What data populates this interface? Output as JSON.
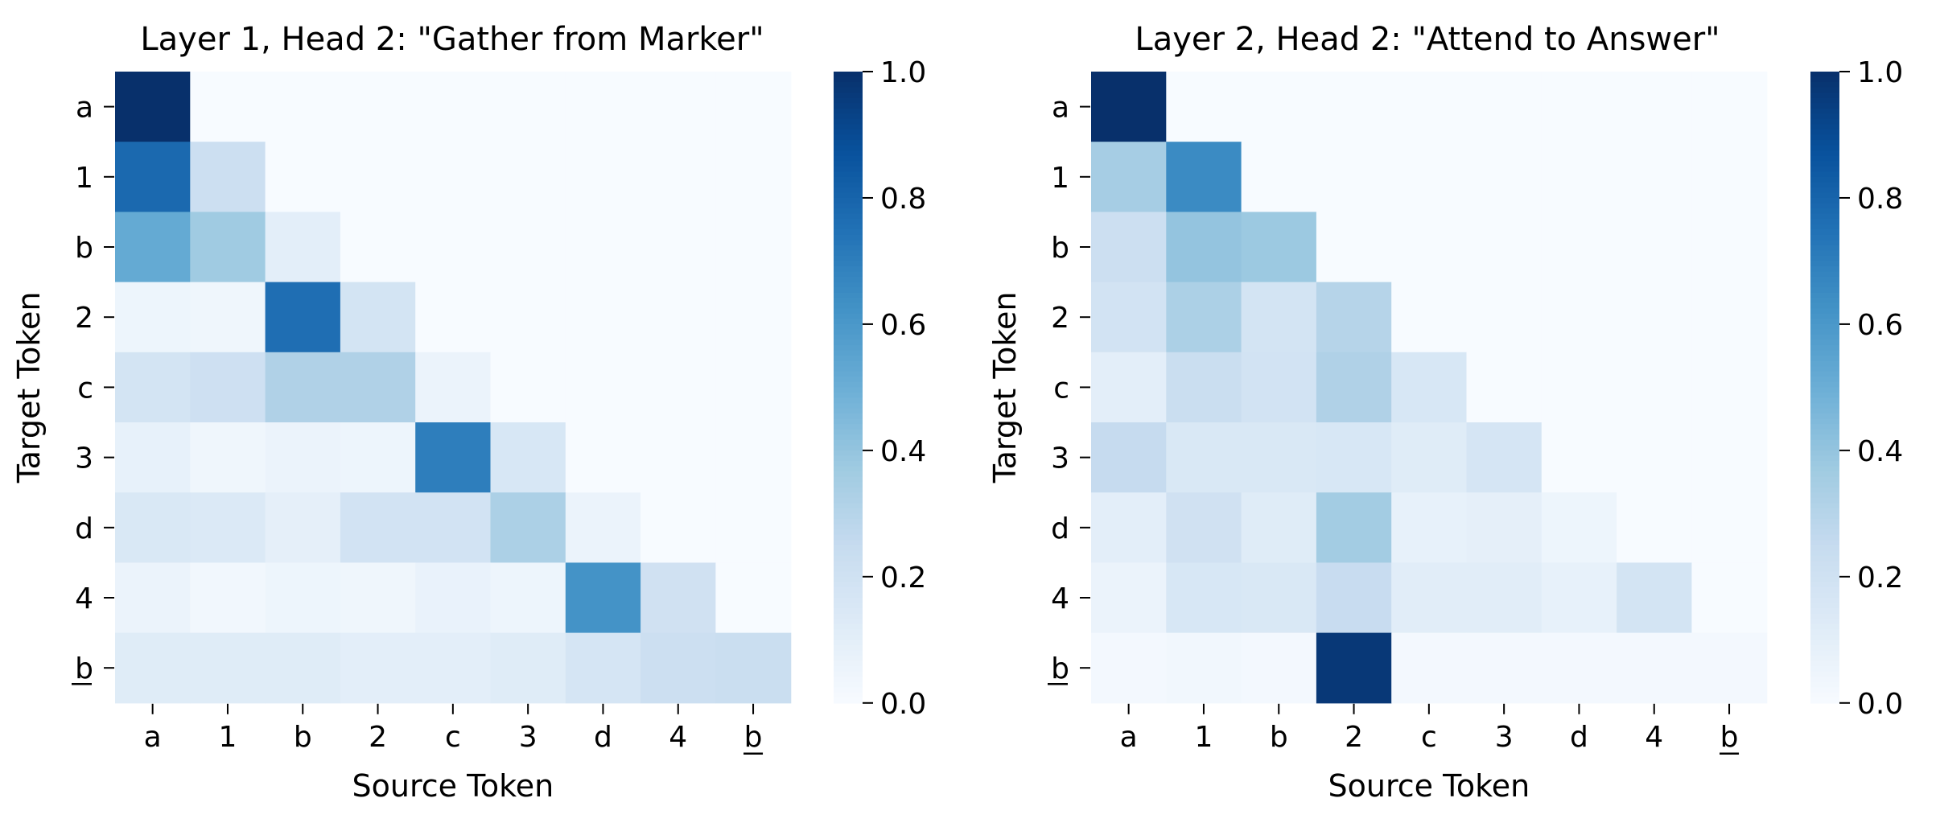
{
  "chart_data": [
    {
      "type": "heatmap",
      "title": "Layer 1, Head 2: \"Gather from Marker\"",
      "xlabel": "Source Token",
      "ylabel": "Target Token",
      "x_categories": [
        "a",
        "1",
        "b",
        "2",
        "c",
        "3",
        "d",
        "4",
        "b"
      ],
      "y_categories": [
        "a",
        "1",
        "b",
        "2",
        "c",
        "3",
        "d",
        "4",
        "b"
      ],
      "underlined_tokens": [
        "b at position 9 (x and y)"
      ],
      "colorbar": {
        "min": 0.0,
        "max": 1.0,
        "ticks": [
          "0.0",
          "0.2",
          "0.4",
          "0.6",
          "0.8",
          "1.0"
        ],
        "colormap": "Blues"
      },
      "values": [
        [
          1.0,
          0.0,
          0.0,
          0.0,
          0.0,
          0.0,
          0.0,
          0.0,
          0.0
        ],
        [
          0.78,
          0.22,
          0.0,
          0.0,
          0.0,
          0.0,
          0.0,
          0.0,
          0.0
        ],
        [
          0.52,
          0.37,
          0.1,
          0.0,
          0.0,
          0.0,
          0.0,
          0.0,
          0.0
        ],
        [
          0.05,
          0.04,
          0.76,
          0.18,
          0.0,
          0.0,
          0.0,
          0.0,
          0.0
        ],
        [
          0.18,
          0.21,
          0.32,
          0.32,
          0.06,
          0.0,
          0.0,
          0.0,
          0.0
        ],
        [
          0.08,
          0.04,
          0.06,
          0.05,
          0.7,
          0.16,
          0.0,
          0.0,
          0.0
        ],
        [
          0.15,
          0.14,
          0.09,
          0.19,
          0.19,
          0.33,
          0.06,
          0.0,
          0.0
        ],
        [
          0.06,
          0.03,
          0.05,
          0.04,
          0.07,
          0.05,
          0.62,
          0.2,
          0.0
        ],
        [
          0.12,
          0.12,
          0.12,
          0.1,
          0.1,
          0.12,
          0.17,
          0.22,
          0.23
        ]
      ]
    },
    {
      "type": "heatmap",
      "title": "Layer 2, Head 2: \"Attend to Answer\"",
      "xlabel": "Source Token",
      "ylabel": "Target Token",
      "x_categories": [
        "a",
        "1",
        "b",
        "2",
        "c",
        "3",
        "d",
        "4",
        "b"
      ],
      "y_categories": [
        "a",
        "1",
        "b",
        "2",
        "c",
        "3",
        "d",
        "4",
        "b"
      ],
      "underlined_tokens": [
        "b at position 9 (x and y)"
      ],
      "colorbar": {
        "min": 0.0,
        "max": 1.0,
        "ticks": [
          "0.0",
          "0.2",
          "0.4",
          "0.6",
          "0.8",
          "1.0"
        ],
        "colormap": "Blues"
      },
      "values": [
        [
          1.0,
          0.0,
          0.0,
          0.0,
          0.0,
          0.0,
          0.0,
          0.0,
          0.0
        ],
        [
          0.35,
          0.65,
          0.0,
          0.0,
          0.0,
          0.0,
          0.0,
          0.0,
          0.0
        ],
        [
          0.22,
          0.4,
          0.38,
          0.0,
          0.0,
          0.0,
          0.0,
          0.0,
          0.0
        ],
        [
          0.19,
          0.33,
          0.18,
          0.3,
          0.0,
          0.0,
          0.0,
          0.0,
          0.0
        ],
        [
          0.1,
          0.23,
          0.19,
          0.32,
          0.16,
          0.0,
          0.0,
          0.0,
          0.0
        ],
        [
          0.25,
          0.15,
          0.15,
          0.16,
          0.12,
          0.17,
          0.0,
          0.0,
          0.0
        ],
        [
          0.1,
          0.2,
          0.12,
          0.36,
          0.08,
          0.09,
          0.05,
          0.0,
          0.0
        ],
        [
          0.06,
          0.16,
          0.15,
          0.24,
          0.11,
          0.11,
          0.08,
          0.18,
          0.0
        ],
        [
          0.02,
          0.03,
          0.02,
          0.97,
          0.02,
          0.02,
          0.02,
          0.02,
          0.02
        ]
      ]
    }
  ]
}
